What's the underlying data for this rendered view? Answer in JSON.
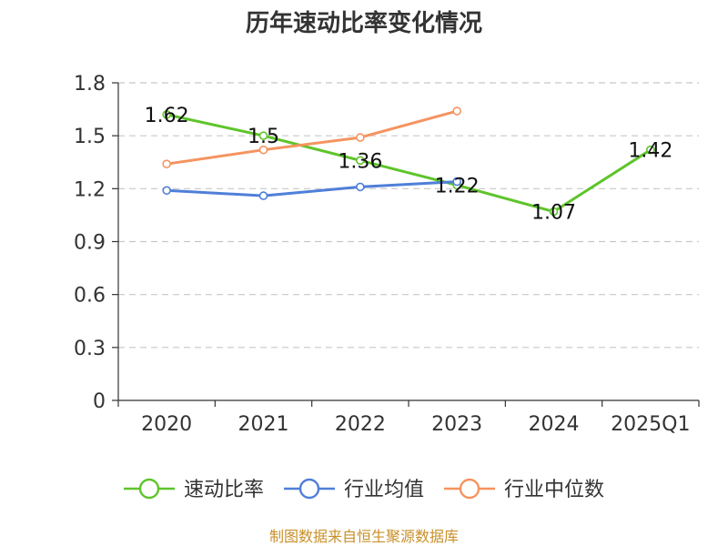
{
  "chart_data": {
    "type": "line",
    "title": "历年速动比率变化情况",
    "categories": [
      "2020",
      "2021",
      "2022",
      "2023",
      "2024",
      "2025Q1"
    ],
    "y_ticks": [
      "0",
      "0.3",
      "0.6",
      "0.9",
      "1.2",
      "1.5",
      "1.8"
    ],
    "ylim": [
      0,
      1.8
    ],
    "grid": true,
    "legend_position": "bottom",
    "series": [
      {
        "name": "速动比率",
        "color": "#5ec42a",
        "values": [
          1.62,
          1.5,
          1.36,
          1.22,
          1.07,
          1.42
        ],
        "labels": [
          "1.62",
          "1.5",
          "1.36",
          "1.22",
          "1.07",
          "1.42"
        ]
      },
      {
        "name": "行业均值",
        "color": "#4f7fd8",
        "values": [
          1.19,
          1.16,
          1.21,
          1.24,
          null,
          null
        ]
      },
      {
        "name": "行业中位数",
        "color": "#f5935f",
        "values": [
          1.34,
          1.42,
          1.49,
          1.64,
          null,
          null
        ]
      }
    ],
    "source": "制图数据来自恒生聚源数据库"
  }
}
